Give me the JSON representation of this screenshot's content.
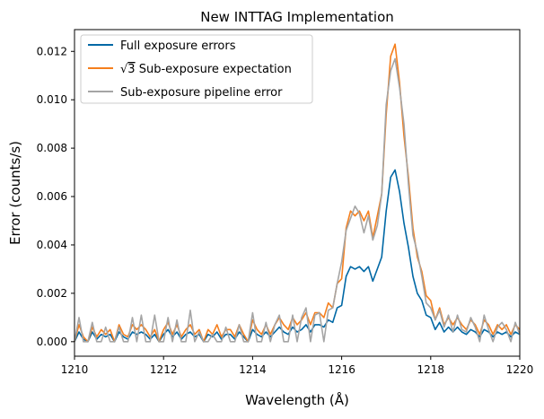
{
  "chart_data": {
    "type": "line",
    "title": "New INTTAG Implementation",
    "xlabel": "Wavelength (Å)",
    "ylabel": "Error (counts/s)",
    "xlim": [
      1210,
      1220
    ],
    "ylim": [
      -0.0006,
      0.0129
    ],
    "xticks": [
      "1210",
      "1212",
      "1214",
      "1216",
      "1218",
      "1220"
    ],
    "yticks": [
      "0.000",
      "0.002",
      "0.004",
      "0.006",
      "0.008",
      "0.010",
      "0.012"
    ],
    "legend_position": "upper-left",
    "series": [
      {
        "name": "Full exposure errors",
        "legend_prefix": "",
        "legend_radicand": "",
        "legend_text": "Full exposure errors",
        "color": "#0068a5",
        "x_start": 1210.0,
        "x_step": 0.1,
        "values": [
          0.0,
          0.0004,
          0.0001,
          0.0,
          0.0004,
          0.0001,
          0.0003,
          0.0002,
          0.0003,
          0.0,
          0.0004,
          0.0002,
          0.0001,
          0.0004,
          0.0003,
          0.0004,
          0.0003,
          0.0001,
          0.0003,
          0.0,
          0.0003,
          0.0005,
          0.0002,
          0.0004,
          0.0001,
          0.0003,
          0.0004,
          0.0002,
          0.0003,
          0.0,
          0.0003,
          0.0002,
          0.0004,
          0.0001,
          0.0003,
          0.0003,
          0.0001,
          0.0004,
          0.0002,
          0.0,
          0.0005,
          0.0003,
          0.0002,
          0.0004,
          0.0002,
          0.0004,
          0.0006,
          0.0004,
          0.0003,
          0.0006,
          0.0004,
          0.0005,
          0.0007,
          0.0004,
          0.0007,
          0.0007,
          0.0006,
          0.0009,
          0.0008,
          0.0014,
          0.0015,
          0.0027,
          0.0031,
          0.003,
          0.0031,
          0.0029,
          0.0031,
          0.0025,
          0.003,
          0.0035,
          0.0054,
          0.0068,
          0.0071,
          0.0062,
          0.0049,
          0.0039,
          0.0027,
          0.002,
          0.0017,
          0.0011,
          0.001,
          0.0005,
          0.0008,
          0.0004,
          0.0006,
          0.0004,
          0.0006,
          0.0004,
          0.0003,
          0.0005,
          0.0004,
          0.0002,
          0.0005,
          0.0004,
          0.0002,
          0.0004,
          0.0003,
          0.0004,
          0.0002,
          0.0004,
          0.0003
        ]
      },
      {
        "name": "√3 Sub-exposure expectation",
        "legend_prefix": "√",
        "legend_radicand": "3",
        "legend_text": " Sub-exposure expectation",
        "color": "#f57f1d",
        "x_start": 1210.0,
        "x_step": 0.1,
        "values": [
          0.0,
          0.0007,
          0.0002,
          0.0,
          0.0006,
          0.0002,
          0.0005,
          0.0003,
          0.0005,
          0.0,
          0.0007,
          0.0003,
          0.0002,
          0.0007,
          0.0005,
          0.0007,
          0.0005,
          0.0002,
          0.0005,
          0.0,
          0.0005,
          0.0008,
          0.0003,
          0.0007,
          0.0002,
          0.0005,
          0.0007,
          0.0003,
          0.0005,
          0.0,
          0.0005,
          0.0003,
          0.0007,
          0.0002,
          0.0005,
          0.0005,
          0.0002,
          0.0007,
          0.0003,
          0.0,
          0.0009,
          0.0005,
          0.0003,
          0.0007,
          0.0003,
          0.0007,
          0.001,
          0.0007,
          0.0005,
          0.001,
          0.0007,
          0.0009,
          0.0012,
          0.0007,
          0.0012,
          0.0012,
          0.001,
          0.0016,
          0.0014,
          0.0024,
          0.0026,
          0.0047,
          0.0054,
          0.0052,
          0.0054,
          0.005,
          0.0054,
          0.0043,
          0.0052,
          0.0061,
          0.0094,
          0.0118,
          0.0123,
          0.0107,
          0.0085,
          0.0068,
          0.0047,
          0.0035,
          0.0029,
          0.0019,
          0.0017,
          0.0009,
          0.0014,
          0.0007,
          0.001,
          0.0007,
          0.001,
          0.0007,
          0.0005,
          0.0009,
          0.0007,
          0.0003,
          0.0009,
          0.0007,
          0.0003,
          0.0007,
          0.0005,
          0.0007,
          0.0003,
          0.0007,
          0.0005
        ]
      },
      {
        "name": "Sub-exposure pipeline error",
        "legend_prefix": "",
        "legend_radicand": "",
        "legend_text": "Sub-exposure pipeline error",
        "color": "#a5a5a5",
        "x_start": 1210.0,
        "x_step": 0.1,
        "values": [
          0.0,
          0.001,
          0.0,
          0.0,
          0.0008,
          0.0,
          0.0,
          0.0006,
          0.0,
          0.0,
          0.0006,
          0.0,
          0.0,
          0.001,
          0.0,
          0.0011,
          0.0,
          0.0,
          0.0011,
          0.0,
          0.0,
          0.001,
          0.0,
          0.0009,
          0.0,
          0.0,
          0.0013,
          0.0,
          0.0004,
          0.0,
          0.0,
          0.0003,
          0.0,
          0.0,
          0.0006,
          0.0,
          0.0,
          0.0007,
          0.0,
          0.0,
          0.0012,
          0.0,
          0.0,
          0.0008,
          0.0,
          0.0007,
          0.0011,
          0.0,
          0.0,
          0.0011,
          0.0,
          0.001,
          0.0014,
          0.0,
          0.0011,
          0.0012,
          0.0,
          0.0013,
          0.0014,
          0.0024,
          0.0033,
          0.0046,
          0.0051,
          0.0056,
          0.0053,
          0.0045,
          0.0052,
          0.0042,
          0.0048,
          0.0061,
          0.0098,
          0.0112,
          0.0117,
          0.0105,
          0.009,
          0.0065,
          0.0044,
          0.0037,
          0.0027,
          0.0016,
          0.0014,
          0.0009,
          0.0013,
          0.0006,
          0.0011,
          0.0004,
          0.0011,
          0.0005,
          0.0004,
          0.001,
          0.0006,
          0.0,
          0.0011,
          0.0005,
          0.0,
          0.0006,
          0.0008,
          0.0005,
          0.0,
          0.0008,
          0.0003
        ]
      }
    ]
  }
}
